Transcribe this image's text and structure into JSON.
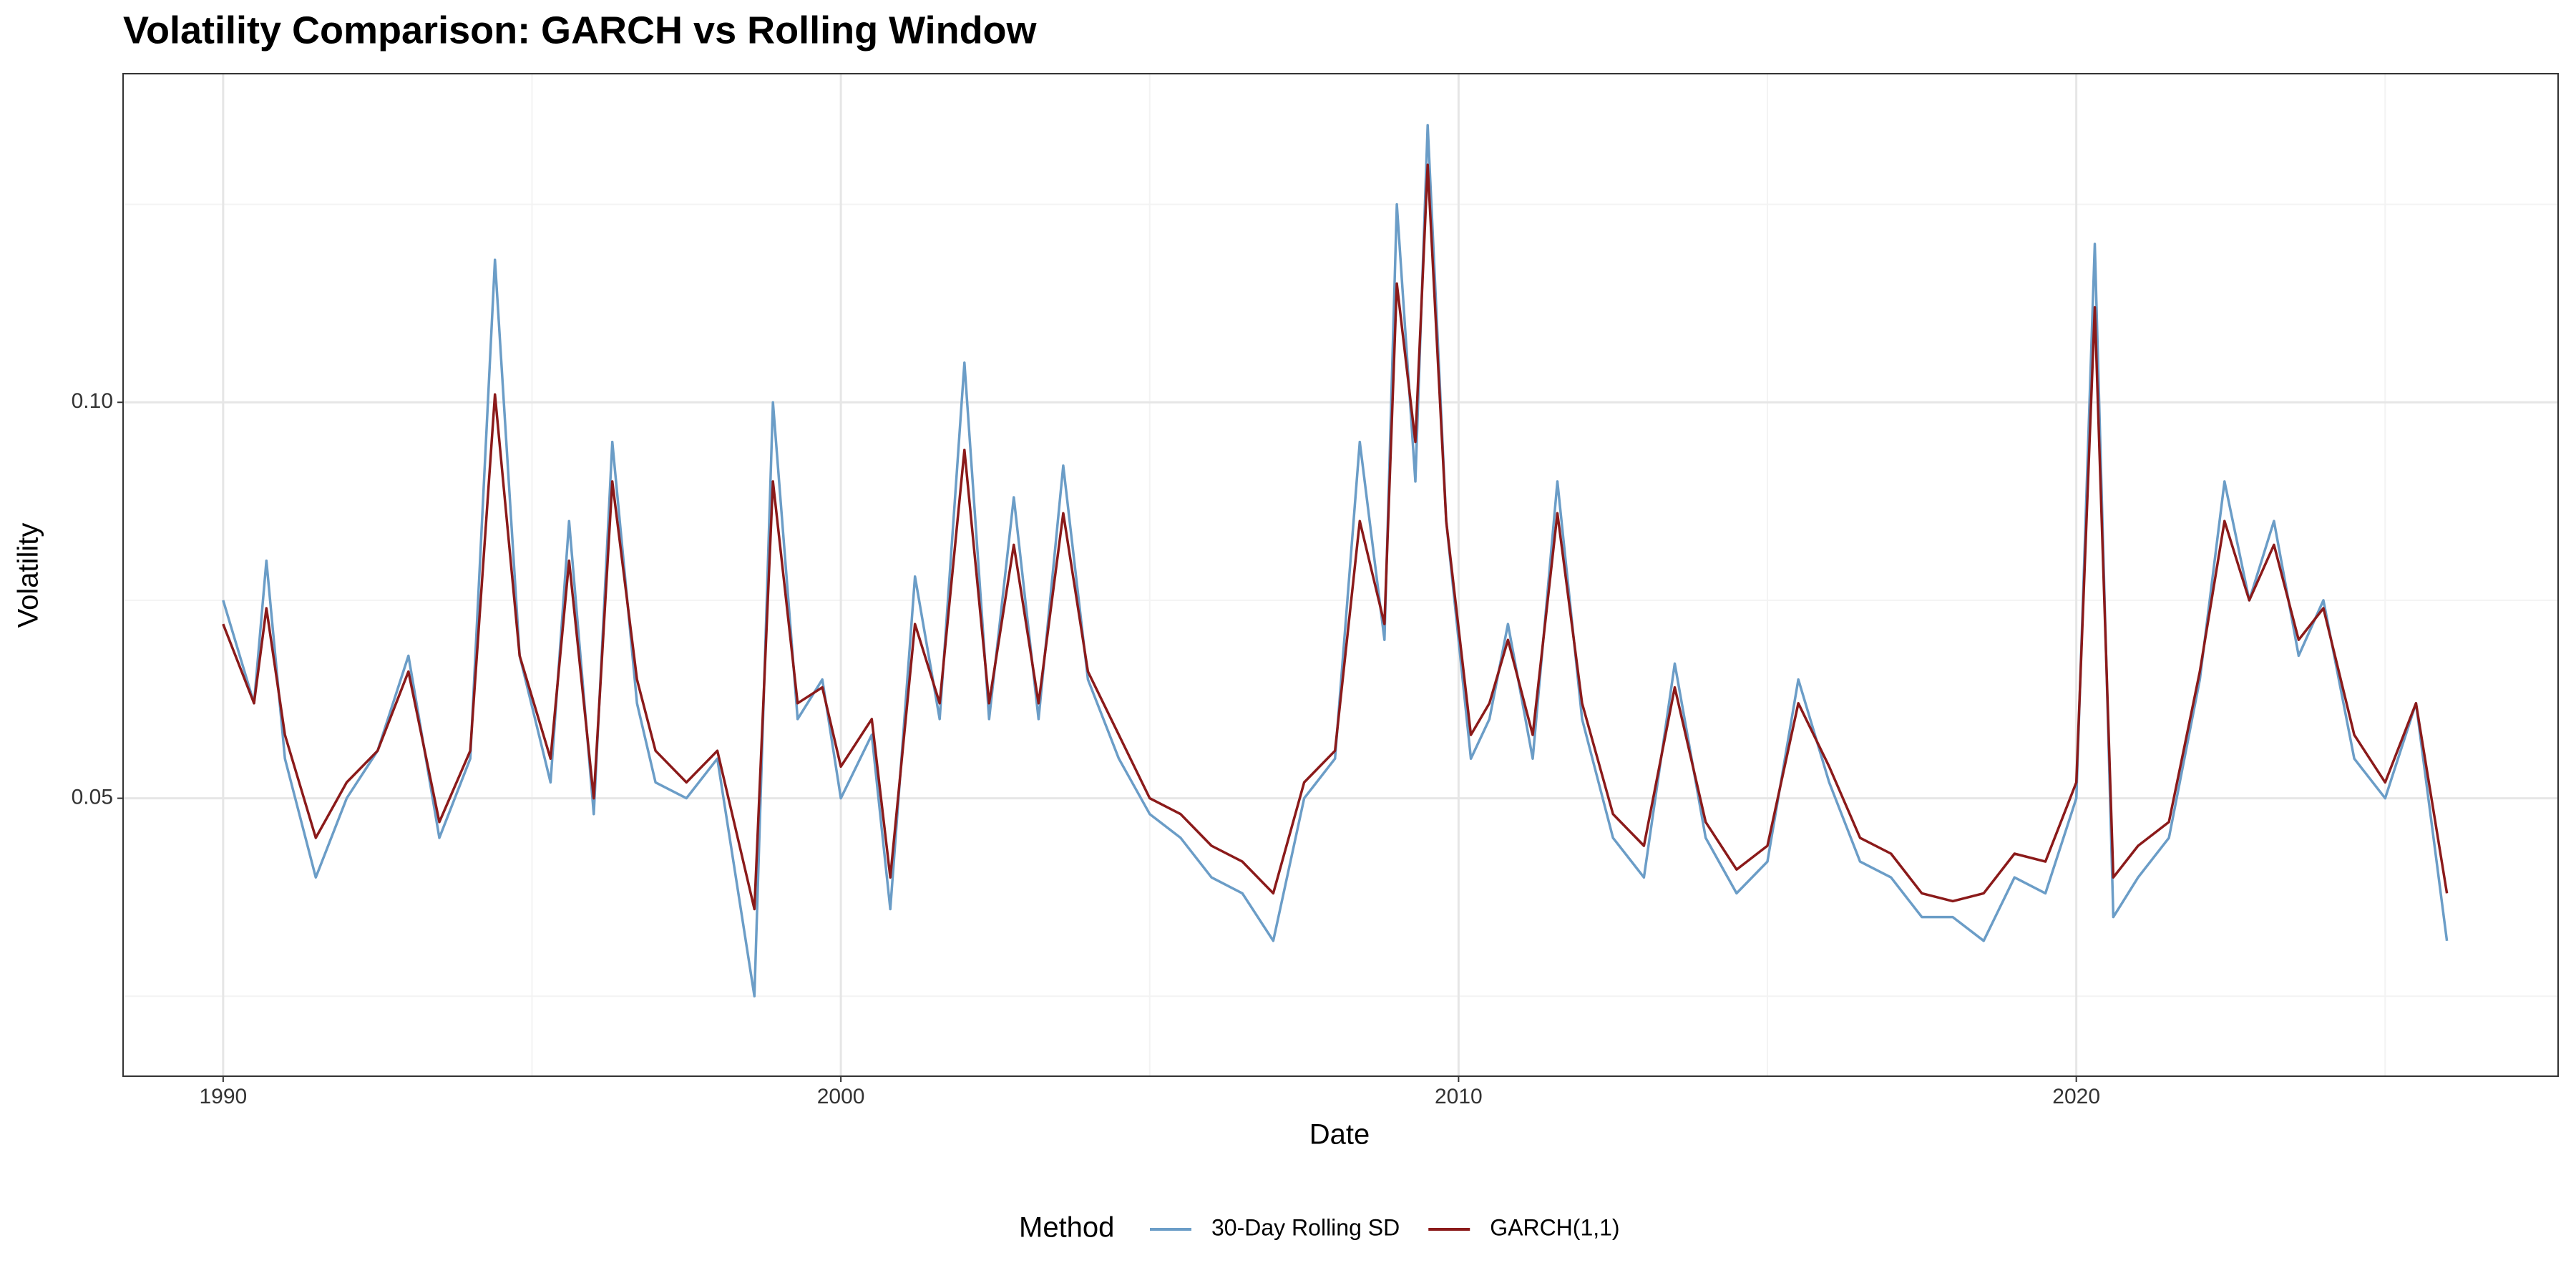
{
  "chart_data": {
    "type": "line",
    "title": "Volatility Comparison: GARCH vs Rolling Window",
    "x_label": "Date",
    "y_label": "Volatility",
    "legend_title": "Method",
    "legend_position": "bottom",
    "grid": true,
    "x": [
      1990.0,
      1990.5,
      1990.7,
      1991.0,
      1991.5,
      1992.0,
      1992.5,
      1993.0,
      1993.5,
      1994.0,
      1994.4,
      1994.8,
      1995.3,
      1995.6,
      1996.0,
      1996.3,
      1996.7,
      1997.0,
      1997.5,
      1998.0,
      1998.6,
      1998.9,
      1999.3,
      1999.7,
      2000.0,
      2000.5,
      2000.8,
      2001.2,
      2001.6,
      2002.0,
      2002.4,
      2002.8,
      2003.2,
      2003.6,
      2004.0,
      2004.5,
      2005.0,
      2005.5,
      2006.0,
      2006.5,
      2007.0,
      2007.5,
      2008.0,
      2008.4,
      2008.8,
      2009.0,
      2009.3,
      2009.5,
      2009.8,
      2010.2,
      2010.5,
      2010.8,
      2011.2,
      2011.6,
      2012.0,
      2012.5,
      2013.0,
      2013.5,
      2014.0,
      2014.5,
      2015.0,
      2015.5,
      2016.0,
      2016.5,
      2017.0,
      2017.5,
      2018.0,
      2018.5,
      2019.0,
      2019.5,
      2020.0,
      2020.3,
      2020.6,
      2021.0,
      2021.5,
      2022.0,
      2022.4,
      2022.8,
      2023.2,
      2023.6,
      2024.0,
      2024.5,
      2025.0,
      2025.5,
      2026.0
    ],
    "series": [
      {
        "name": "30-Day Rolling SD",
        "color": "#6b9dc7",
        "values": [
          0.075,
          0.062,
          0.08,
          0.055,
          0.04,
          0.05,
          0.056,
          0.068,
          0.045,
          0.055,
          0.118,
          0.068,
          0.052,
          0.085,
          0.048,
          0.095,
          0.062,
          0.052,
          0.05,
          0.055,
          0.025,
          0.1,
          0.06,
          0.065,
          0.05,
          0.058,
          0.036,
          0.078,
          0.06,
          0.105,
          0.06,
          0.088,
          0.06,
          0.092,
          0.065,
          0.055,
          0.048,
          0.045,
          0.04,
          0.038,
          0.032,
          0.05,
          0.055,
          0.095,
          0.07,
          0.125,
          0.09,
          0.135,
          0.085,
          0.055,
          0.06,
          0.072,
          0.055,
          0.09,
          0.06,
          0.045,
          0.04,
          0.067,
          0.045,
          0.038,
          0.042,
          0.065,
          0.052,
          0.042,
          0.04,
          0.035,
          0.035,
          0.032,
          0.04,
          0.038,
          0.05,
          0.12,
          0.035,
          0.04,
          0.045,
          0.065,
          0.09,
          0.075,
          0.085,
          0.068,
          0.075,
          0.055,
          0.05,
          0.062,
          0.032
        ]
      },
      {
        "name": "GARCH(1,1)",
        "color": "#8b1a1a",
        "values": [
          0.072,
          0.062,
          0.074,
          0.058,
          0.045,
          0.052,
          0.056,
          0.066,
          0.047,
          0.056,
          0.101,
          0.068,
          0.055,
          0.08,
          0.05,
          0.09,
          0.065,
          0.056,
          0.052,
          0.056,
          0.036,
          0.09,
          0.062,
          0.064,
          0.054,
          0.06,
          0.04,
          0.072,
          0.062,
          0.094,
          0.062,
          0.082,
          0.062,
          0.086,
          0.066,
          0.058,
          0.05,
          0.048,
          0.044,
          0.042,
          0.038,
          0.052,
          0.056,
          0.085,
          0.072,
          0.115,
          0.095,
          0.13,
          0.085,
          0.058,
          0.062,
          0.07,
          0.058,
          0.086,
          0.062,
          0.048,
          0.044,
          0.064,
          0.047,
          0.041,
          0.044,
          0.062,
          0.054,
          0.045,
          0.043,
          0.038,
          0.037,
          0.038,
          0.043,
          0.042,
          0.052,
          0.112,
          0.04,
          0.044,
          0.047,
          0.066,
          0.085,
          0.075,
          0.082,
          0.07,
          0.074,
          0.058,
          0.052,
          0.062,
          0.038
        ]
      }
    ],
    "xlim": [
      1988.38,
      2027.8
    ],
    "xticks": [
      1990,
      2000,
      2010,
      2020
    ],
    "x_minor_ticks": [
      1995,
      2005,
      2015,
      2025
    ],
    "ylim": [
      0.0149,
      0.1415
    ],
    "yticks": [
      {
        "value": 0.05,
        "label": "0.05"
      },
      {
        "value": 0.1,
        "label": "0.10"
      }
    ],
    "y_minor_ticks": [
      0.025,
      0.075,
      0.125
    ]
  }
}
